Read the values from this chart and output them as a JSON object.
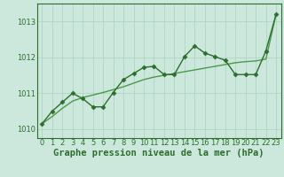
{
  "title": "Graphe pression niveau de la mer (hPa)",
  "background_color": "#cce8dc",
  "grid_color": "#b0d4c4",
  "line_color_main": "#2d6e2d",
  "line_color_smooth": "#4a9a4a",
  "xlim": [
    -0.5,
    23.5
  ],
  "ylim": [
    1009.75,
    1013.5
  ],
  "xticks": [
    0,
    1,
    2,
    3,
    4,
    5,
    6,
    7,
    8,
    9,
    10,
    11,
    12,
    13,
    14,
    15,
    16,
    17,
    18,
    19,
    20,
    21,
    22,
    23
  ],
  "yticks": [
    1010,
    1011,
    1012,
    1013
  ],
  "x": [
    0,
    1,
    2,
    3,
    4,
    5,
    6,
    7,
    8,
    9,
    10,
    11,
    12,
    13,
    14,
    15,
    16,
    17,
    18,
    19,
    20,
    21,
    22,
    23
  ],
  "y_raw": [
    1010.15,
    1010.5,
    1010.75,
    1011.0,
    1010.85,
    1010.62,
    1010.62,
    1011.02,
    1011.38,
    1011.55,
    1011.72,
    1011.75,
    1011.52,
    1011.52,
    1012.02,
    1012.32,
    1012.12,
    1012.02,
    1011.92,
    1011.52,
    1011.52,
    1011.52,
    1012.18,
    1013.2
  ],
  "y_smooth": [
    1010.15,
    1010.35,
    1010.58,
    1010.78,
    1010.88,
    1010.95,
    1011.02,
    1011.1,
    1011.18,
    1011.28,
    1011.38,
    1011.45,
    1011.5,
    1011.55,
    1011.6,
    1011.65,
    1011.7,
    1011.75,
    1011.8,
    1011.85,
    1011.88,
    1011.9,
    1011.95,
    1013.2
  ],
  "marker": "D",
  "markersize": 2.5,
  "linewidth_raw": 1.0,
  "linewidth_smooth": 1.0,
  "title_fontsize": 7.5,
  "tick_fontsize": 6.0
}
